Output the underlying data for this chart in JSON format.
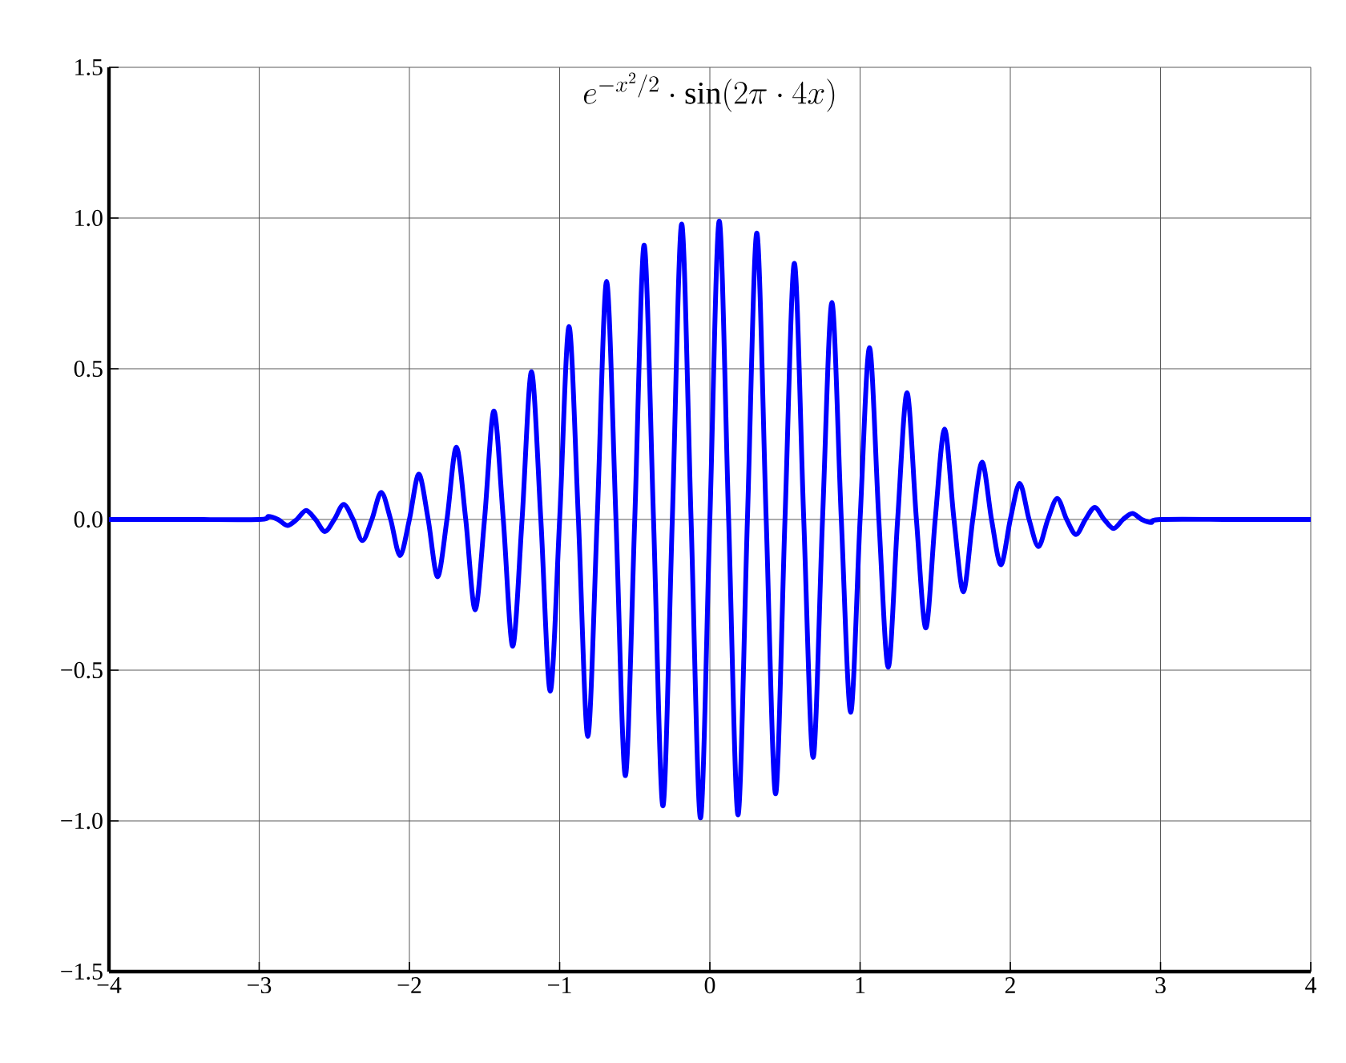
{
  "chart_data": {
    "type": "line",
    "title": "e^{-x^{2}/2}\\cdot\\sin(2\\pi\\cdot 4x)",
    "x": [
      -4,
      -3.5,
      -3,
      -2.9375,
      -2.875,
      -2.8125,
      -2.75,
      -2.6875,
      -2.625,
      -2.5625,
      -2.5,
      -2.4375,
      -2.375,
      -2.3125,
      -2.25,
      -2.1875,
      -2.125,
      -2.0625,
      -2,
      -1.9375,
      -1.875,
      -1.8125,
      -1.75,
      -1.6875,
      -1.625,
      -1.5625,
      -1.5,
      -1.4375,
      -1.375,
      -1.3125,
      -1.25,
      -1.1875,
      -1.125,
      -1.0625,
      -1,
      -0.9375,
      -0.875,
      -0.8125,
      -0.75,
      -0.6875,
      -0.625,
      -0.5625,
      -0.5,
      -0.4375,
      -0.375,
      -0.3125,
      -0.25,
      -0.1875,
      -0.125,
      -0.0625,
      0,
      0.0625,
      0.125,
      0.1875,
      0.25,
      0.3125,
      0.375,
      0.4375,
      0.5,
      0.5625,
      0.625,
      0.6875,
      0.75,
      0.8125,
      0.875,
      0.9375,
      1,
      1.0625,
      1.125,
      1.1875,
      1.25,
      1.3125,
      1.375,
      1.4375,
      1.5,
      1.5625,
      1.625,
      1.6875,
      1.75,
      1.8125,
      1.875,
      1.9375,
      2,
      2.0625,
      2.125,
      2.1875,
      2.25,
      2.3125,
      2.375,
      2.4375,
      2.5,
      2.5625,
      2.625,
      2.6875,
      2.75,
      2.8125,
      2.875,
      2.9375,
      3,
      3.5,
      4
    ],
    "series": [
      {
        "color": "#0000ff",
        "values": [
          0,
          0,
          0,
          0.01,
          0,
          -0.02,
          0,
          0.03,
          0,
          -0.04,
          0,
          0.05,
          0,
          -0.07,
          0,
          0.09,
          0,
          -0.12,
          0,
          0.15,
          0,
          -0.19,
          0,
          0.24,
          0,
          -0.3,
          0,
          0.36,
          0,
          -0.42,
          0,
          0.49,
          0,
          -0.57,
          0,
          0.64,
          0,
          -0.72,
          0,
          0.79,
          0,
          -0.85,
          0,
          0.91,
          0,
          -0.95,
          0,
          0.98,
          0,
          -0.99,
          0,
          0.99,
          0,
          -0.98,
          0,
          0.95,
          0,
          -0.91,
          0,
          0.85,
          0,
          -0.79,
          0,
          0.72,
          0,
          -0.64,
          0,
          0.57,
          0,
          -0.49,
          0,
          0.42,
          0,
          -0.36,
          0,
          0.3,
          0,
          -0.24,
          0,
          0.19,
          0,
          -0.15,
          0,
          0.12,
          0,
          -0.09,
          0,
          0.07,
          0,
          -0.05,
          0,
          0.04,
          0,
          -0.03,
          0,
          0.02,
          0,
          -0.01,
          0,
          0,
          0
        ]
      }
    ],
    "xlim": [
      -4,
      4
    ],
    "xticks": [
      {
        "value": -4,
        "label": "−4"
      },
      {
        "value": -3,
        "label": "−3"
      },
      {
        "value": -2,
        "label": "−2"
      },
      {
        "value": -1,
        "label": "−1"
      },
      0,
      1,
      2,
      3,
      4
    ],
    "ylim": [
      -1.5,
      1.5
    ],
    "yticks": [
      {
        "value": -1.5,
        "label": "−1.5"
      },
      {
        "value": -1,
        "label": "−1.0"
      },
      {
        "value": -0.5,
        "label": "−0.5"
      },
      {
        "value": 0,
        "label": "0.0"
      },
      {
        "value": 0.5,
        "label": "0.5"
      },
      {
        "value": 1,
        "label": "1.0"
      },
      1.5
    ],
    "grid": true,
    "marker": "none",
    "line_style": "solid"
  }
}
